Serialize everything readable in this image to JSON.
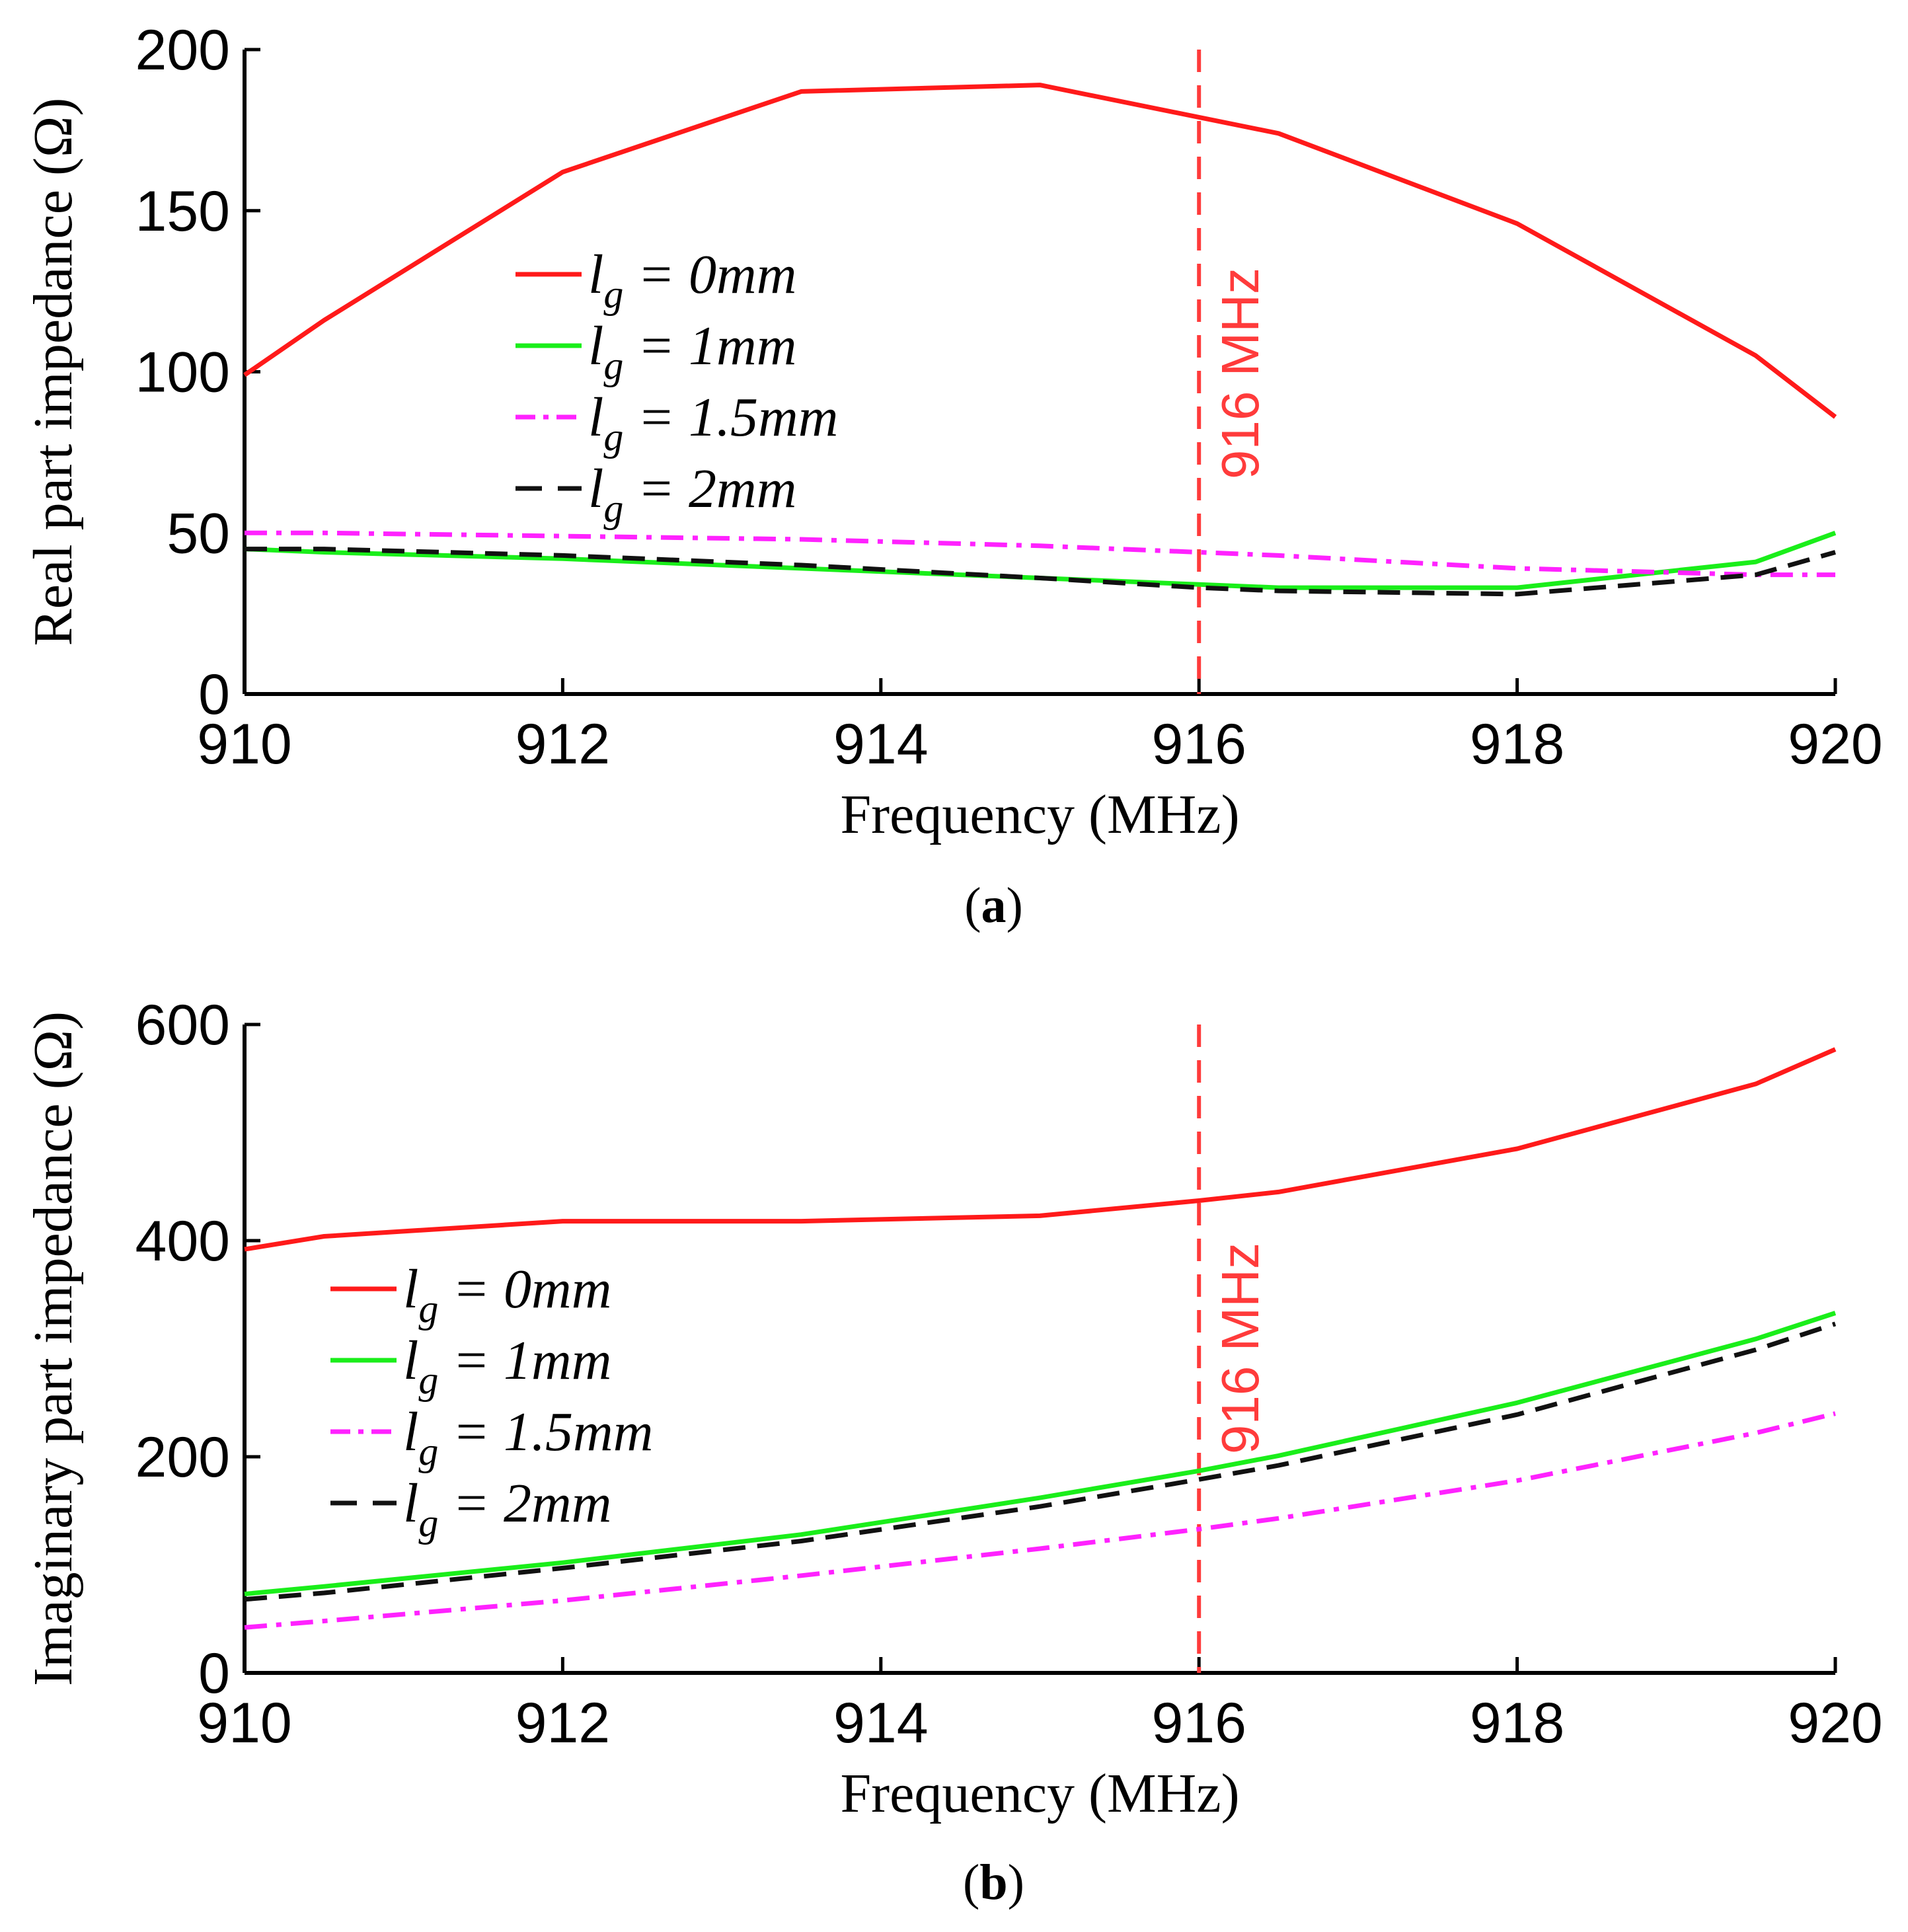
{
  "chart_data": [
    {
      "type": "line",
      "panel": "a",
      "caption_open": "(",
      "caption_letter": "a",
      "caption_close": ")",
      "xlabel": "Frequency (MHz)",
      "ylabel": "Real part impedance (Ω)",
      "xlim": [
        910,
        920
      ],
      "ylim": [
        0,
        200
      ],
      "xticks": [
        "910",
        "912",
        "914",
        "916",
        "918",
        "920"
      ],
      "yticks": [
        "0",
        "50",
        "100",
        "150",
        "200"
      ],
      "legend_position": "center-left",
      "marker": {
        "x": 916,
        "label": "916 MHz",
        "color": "#ff3b3b"
      },
      "series": [
        {
          "name": "l_g = 0mm",
          "label": "lg = 0mm",
          "color": "#ff1a1a",
          "style": "solid",
          "x": [
            910,
            910.5,
            912,
            913.5,
            915,
            916,
            916.5,
            918,
            919.5,
            920
          ],
          "y": [
            99,
            116,
            162,
            187,
            189,
            179,
            174,
            146,
            105,
            86
          ]
        },
        {
          "name": "l_g = 1mm",
          "label": "lg = 1mm",
          "color": "#1aee1a",
          "style": "solid",
          "x": [
            910,
            910.5,
            912,
            913.5,
            915,
            916,
            916.5,
            918,
            919.5,
            920
          ],
          "y": [
            45,
            44,
            42,
            39,
            36,
            34,
            33,
            33,
            41,
            50
          ]
        },
        {
          "name": "l_g = 1.5mm",
          "label": "lg = 1.5mm",
          "color": "#ff22ff",
          "style": "dashdot",
          "x": [
            910,
            910.5,
            912,
            913.5,
            915,
            916,
            916.5,
            918,
            919.5,
            920
          ],
          "y": [
            50,
            50,
            49,
            48,
            46,
            44,
            43,
            39,
            37,
            37
          ]
        },
        {
          "name": "l_g = 2mm",
          "label": "lg = 2mm",
          "color": "#111111",
          "style": "dashed",
          "x": [
            910,
            910.5,
            912,
            913.5,
            915,
            916,
            916.5,
            918,
            919.5,
            920
          ],
          "y": [
            45,
            45,
            43,
            40,
            36,
            33,
            32,
            31,
            37,
            44
          ]
        }
      ]
    },
    {
      "type": "line",
      "panel": "b",
      "caption_open": "(",
      "caption_letter": "b",
      "caption_close": ")",
      "xlabel": "Frequency (MHz)",
      "ylabel": "Imaginary part impedance (Ω)",
      "xlim": [
        910,
        920
      ],
      "ylim": [
        0,
        600
      ],
      "xticks": [
        "910",
        "912",
        "914",
        "916",
        "918",
        "920"
      ],
      "yticks": [
        "0",
        "200",
        "400",
        "600"
      ],
      "legend_position": "center-left",
      "marker": {
        "x": 916,
        "label": "916 MHz",
        "color": "#ff3b3b"
      },
      "series": [
        {
          "name": "l_g = 0mm",
          "label": "lg = 0mm",
          "color": "#ff1a1a",
          "style": "solid",
          "x": [
            910,
            910.5,
            912,
            913.5,
            915,
            916,
            916.5,
            918,
            919.5,
            920
          ],
          "y": [
            392,
            404,
            418,
            418,
            423,
            437,
            445,
            485,
            545,
            577
          ]
        },
        {
          "name": "l_g = 1mm",
          "label": "lg = 1mm",
          "color": "#1aee1a",
          "style": "solid",
          "x": [
            910,
            910.5,
            912,
            913.5,
            915,
            916,
            916.5,
            918,
            919.5,
            920
          ],
          "y": [
            73,
            80,
            102,
            128,
            162,
            187,
            201,
            250,
            309,
            333
          ]
        },
        {
          "name": "l_g = 1.5mm",
          "label": "lg = 1.5mm",
          "color": "#ff22ff",
          "style": "dashdot",
          "x": [
            910,
            910.5,
            912,
            913.5,
            915,
            916,
            916.5,
            918,
            919.5,
            920
          ],
          "y": [
            42,
            48,
            67,
            90,
            115,
            133,
            143,
            178,
            222,
            240
          ]
        },
        {
          "name": "l_g = 2mm",
          "label": "lg = 2mm",
          "color": "#111111",
          "style": "dashed",
          "x": [
            910,
            910.5,
            912,
            913.5,
            915,
            916,
            916.5,
            918,
            919.5,
            920
          ],
          "y": [
            68,
            74,
            97,
            122,
            154,
            179,
            192,
            239,
            299,
            323
          ]
        }
      ]
    }
  ]
}
